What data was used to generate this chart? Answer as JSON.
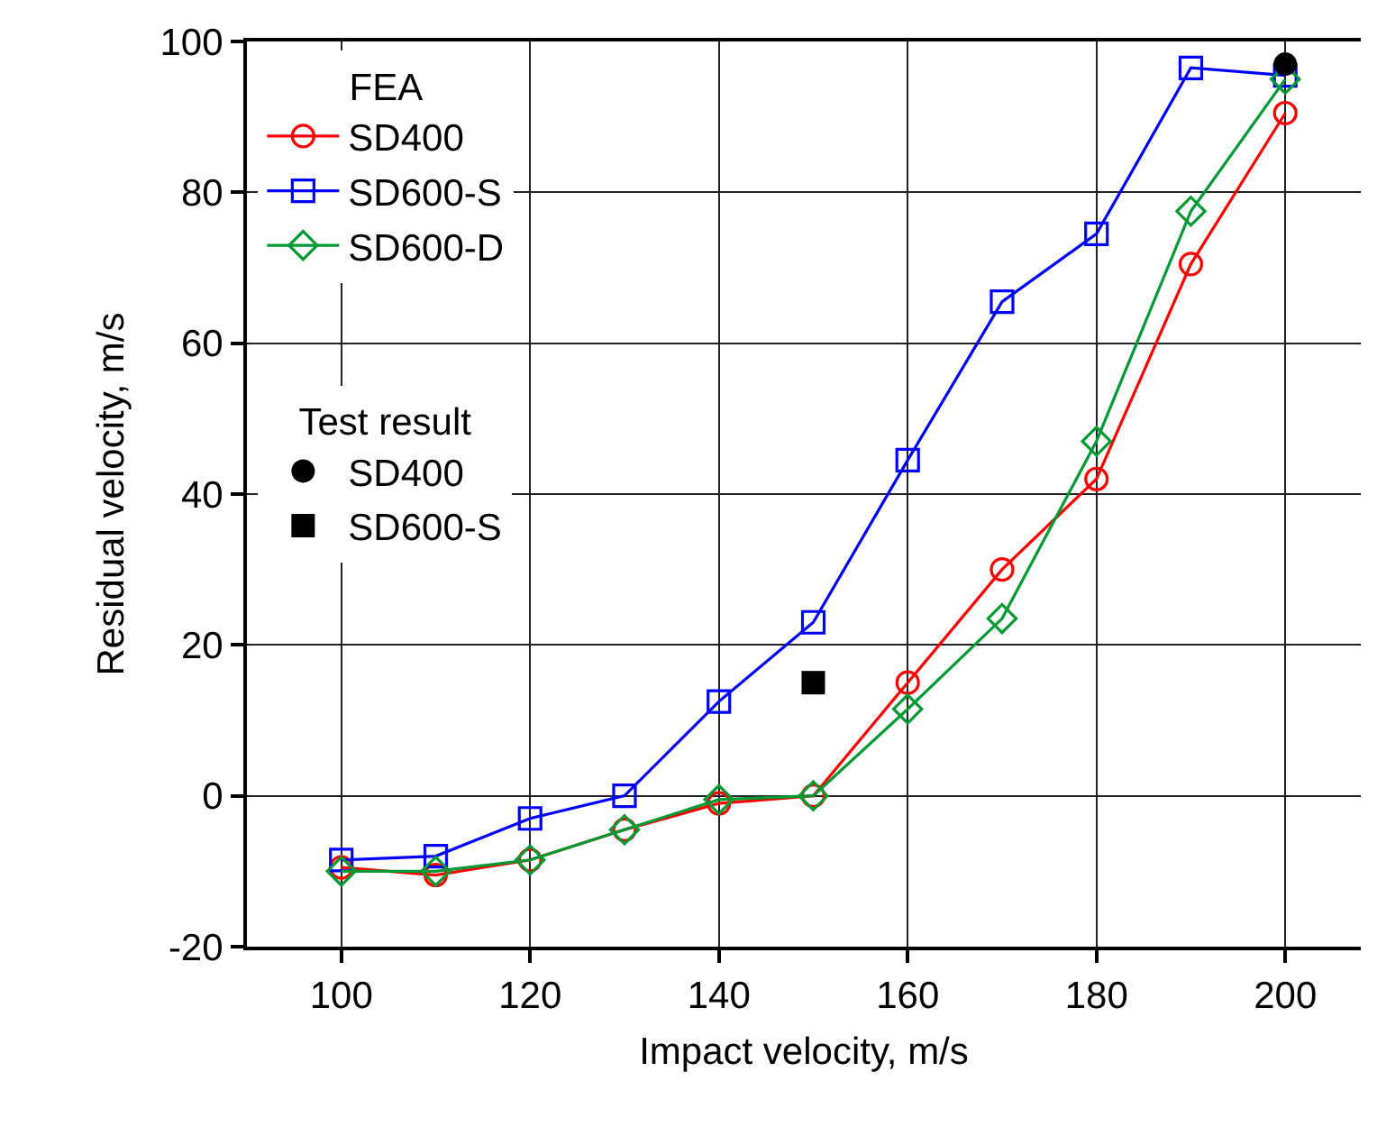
{
  "chart_data": {
    "type": "line",
    "xlabel": "Impact velocity, m/s",
    "ylabel": "Residual velocity, m/s",
    "legend_title": "FEA",
    "annotations": [
      "Test result"
    ],
    "x": [
      100,
      110,
      120,
      130,
      140,
      150,
      160,
      170,
      180,
      190,
      200
    ],
    "xlim": [
      90,
      208
    ],
    "xticks": [
      100,
      120,
      140,
      160,
      180,
      200
    ],
    "ylim": [
      -20,
      100
    ],
    "yticks": [
      -20,
      0,
      20,
      40,
      60,
      80,
      100
    ],
    "grid": true,
    "legend": "top left",
    "line_style": "solid",
    "series": [
      {
        "name": "SD400",
        "marker": "circle",
        "color": "#ff0000",
        "values": [
          -9.5,
          -10.5,
          -8.5,
          -4.5,
          -1,
          0,
          15,
          30,
          42,
          70.5,
          90.5
        ]
      },
      {
        "name": "SD600-S",
        "marker": "square",
        "color": "#0000ff",
        "values": [
          -8.5,
          -8,
          -3,
          0,
          12.5,
          23,
          44.5,
          65.5,
          74.5,
          96.5,
          95.5
        ]
      },
      {
        "name": "SD600-D",
        "marker": "diamond",
        "color": "#009933",
        "values": [
          -10,
          -10,
          -8.5,
          -4.5,
          -0.5,
          0,
          11.5,
          23.5,
          47,
          77.5,
          95
        ]
      },
      {
        "name": "SD400",
        "type": "scatter",
        "marker": "circle",
        "color": "#000000",
        "x": [
          200
        ],
        "values": [
          97
        ]
      },
      {
        "name": "SD600-S",
        "type": "scatter",
        "marker": "square",
        "color": "#000000",
        "x": [
          150
        ],
        "values": [
          15
        ]
      }
    ]
  }
}
